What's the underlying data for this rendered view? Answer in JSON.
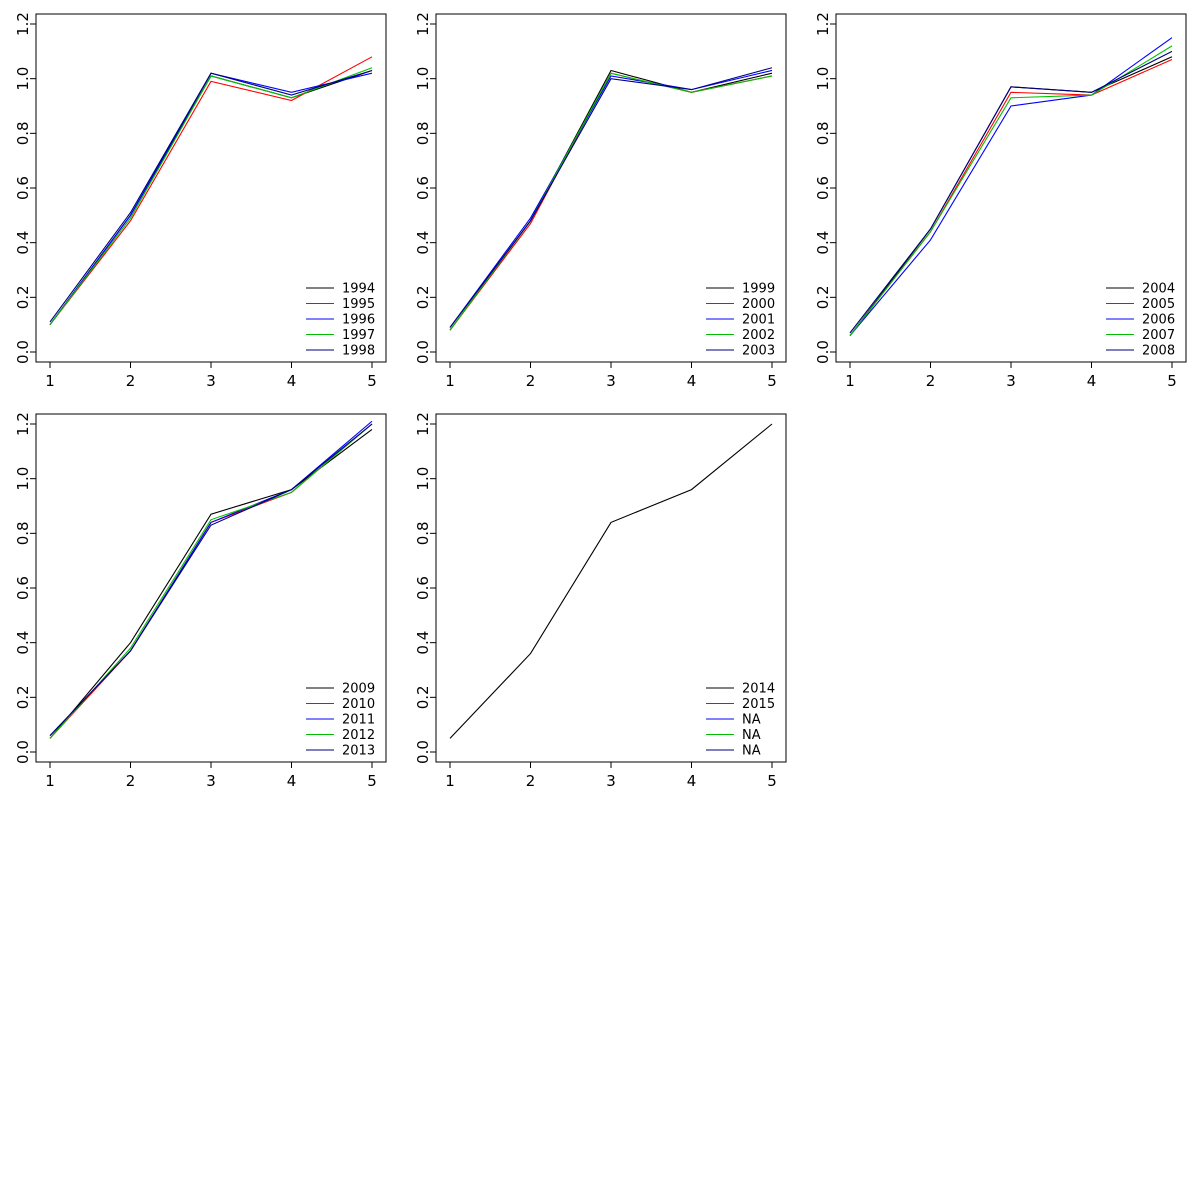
{
  "page": {
    "background": "#ffffff"
  },
  "chart_data": [
    {
      "type": "line",
      "title": "",
      "xlabel": "",
      "ylabel": "",
      "x": [
        1,
        2,
        3,
        4,
        5
      ],
      "xlim": [
        1,
        5
      ],
      "ylim": [
        0,
        1.2
      ],
      "x_ticks": [
        1,
        2,
        3,
        4,
        5
      ],
      "y_ticks": [
        0.0,
        0.2,
        0.4,
        0.6,
        0.8,
        1.0,
        1.2
      ],
      "grid": false,
      "legend_position": "bottomright",
      "series": [
        {
          "name": "1994",
          "color": "#000000",
          "values": [
            0.1,
            0.5,
            1.01,
            0.93,
            1.03
          ]
        },
        {
          "name": "1995",
          "color": "#FF0000",
          "values": [
            0.1,
            0.48,
            0.99,
            0.92,
            1.08
          ]
        },
        {
          "name": "1996",
          "color": "#0000FF",
          "values": [
            0.1,
            0.5,
            1.02,
            0.95,
            1.02
          ]
        },
        {
          "name": "1997",
          "color": "#00C000",
          "values": [
            0.1,
            0.49,
            1.01,
            0.93,
            1.04
          ]
        },
        {
          "name": "1998",
          "color": "#000080",
          "values": [
            0.11,
            0.51,
            1.02,
            0.94,
            1.03
          ]
        }
      ],
      "legend": [
        {
          "label": "1994",
          "color": "#000000"
        },
        {
          "label": "1995",
          "color": "#FF0000"
        },
        {
          "label": "1996",
          "color": "#0000FF"
        },
        {
          "label": "1997",
          "color": "#00C000"
        },
        {
          "label": "1998",
          "color": "#000080"
        }
      ]
    },
    {
      "type": "line",
      "title": "",
      "xlabel": "",
      "ylabel": "",
      "x": [
        1,
        2,
        3,
        4,
        5
      ],
      "xlim": [
        1,
        5
      ],
      "ylim": [
        0,
        1.2
      ],
      "x_ticks": [
        1,
        2,
        3,
        4,
        5
      ],
      "y_ticks": [
        0.0,
        0.2,
        0.4,
        0.6,
        0.8,
        1.0,
        1.2
      ],
      "grid": false,
      "legend_position": "bottomright",
      "series": [
        {
          "name": "1999",
          "color": "#000000",
          "values": [
            0.08,
            0.48,
            1.03,
            0.95,
            1.02
          ]
        },
        {
          "name": "2000",
          "color": "#FF0000",
          "values": [
            0.08,
            0.47,
            1.02,
            0.95,
            1.01
          ]
        },
        {
          "name": "2001",
          "color": "#0000FF",
          "values": [
            0.09,
            0.49,
            1.01,
            0.96,
            1.03
          ]
        },
        {
          "name": "2002",
          "color": "#00C000",
          "values": [
            0.08,
            0.48,
            1.02,
            0.95,
            1.01
          ]
        },
        {
          "name": "2003",
          "color": "#000080",
          "values": [
            0.09,
            0.48,
            1.0,
            0.96,
            1.04
          ]
        }
      ],
      "legend": [
        {
          "label": "1999",
          "color": "#000000"
        },
        {
          "label": "2000",
          "color": "#FF0000"
        },
        {
          "label": "2001",
          "color": "#0000FF"
        },
        {
          "label": "2002",
          "color": "#00C000"
        },
        {
          "label": "2003",
          "color": "#000080"
        }
      ]
    },
    {
      "type": "line",
      "title": "",
      "xlabel": "",
      "ylabel": "",
      "x": [
        1,
        2,
        3,
        4,
        5
      ],
      "xlim": [
        1,
        5
      ],
      "ylim": [
        0,
        1.2
      ],
      "x_ticks": [
        1,
        2,
        3,
        4,
        5
      ],
      "y_ticks": [
        0.0,
        0.2,
        0.4,
        0.6,
        0.8,
        1.0,
        1.2
      ],
      "grid": false,
      "legend_position": "bottomright",
      "series": [
        {
          "name": "2004",
          "color": "#000000",
          "values": [
            0.06,
            0.45,
            0.97,
            0.95,
            1.08
          ]
        },
        {
          "name": "2005",
          "color": "#FF0000",
          "values": [
            0.06,
            0.44,
            0.95,
            0.94,
            1.07
          ]
        },
        {
          "name": "2006",
          "color": "#0000FF",
          "values": [
            0.06,
            0.41,
            0.9,
            0.94,
            1.15
          ]
        },
        {
          "name": "2007",
          "color": "#00C000",
          "values": [
            0.06,
            0.44,
            0.93,
            0.94,
            1.12
          ]
        },
        {
          "name": "2008",
          "color": "#000080",
          "values": [
            0.07,
            0.45,
            0.97,
            0.95,
            1.1
          ]
        }
      ],
      "legend": [
        {
          "label": "2004",
          "color": "#000000"
        },
        {
          "label": "2005",
          "color": "#FF0000"
        },
        {
          "label": "2006",
          "color": "#0000FF"
        },
        {
          "label": "2007",
          "color": "#00C000"
        },
        {
          "label": "2008",
          "color": "#000080"
        }
      ]
    },
    {
      "type": "line",
      "title": "",
      "xlabel": "",
      "ylabel": "",
      "x": [
        1,
        2,
        3,
        4,
        5
      ],
      "xlim": [
        1,
        5
      ],
      "ylim": [
        0,
        1.2
      ],
      "x_ticks": [
        1,
        2,
        3,
        4,
        5
      ],
      "y_ticks": [
        0.0,
        0.2,
        0.4,
        0.6,
        0.8,
        1.0,
        1.2
      ],
      "grid": false,
      "legend_position": "bottomright",
      "series": [
        {
          "name": "2009",
          "color": "#000000",
          "values": [
            0.05,
            0.4,
            0.87,
            0.96,
            1.18
          ]
        },
        {
          "name": "2010",
          "color": "#FF0000",
          "values": [
            0.05,
            0.37,
            0.84,
            0.95,
            1.2
          ]
        },
        {
          "name": "2011",
          "color": "#0000FF",
          "values": [
            0.06,
            0.37,
            0.84,
            0.96,
            1.21
          ]
        },
        {
          "name": "2012",
          "color": "#00C000",
          "values": [
            0.05,
            0.38,
            0.85,
            0.95,
            1.2
          ]
        },
        {
          "name": "2013",
          "color": "#000080",
          "values": [
            0.06,
            0.37,
            0.83,
            0.96,
            1.2
          ]
        }
      ],
      "legend": [
        {
          "label": "2009",
          "color": "#000000"
        },
        {
          "label": "2010",
          "color": "#FF0000"
        },
        {
          "label": "2011",
          "color": "#0000FF"
        },
        {
          "label": "2012",
          "color": "#00C000"
        },
        {
          "label": "2013",
          "color": "#000080"
        }
      ]
    },
    {
      "type": "line",
      "title": "",
      "xlabel": "",
      "ylabel": "",
      "x": [
        1,
        2,
        3,
        4,
        5
      ],
      "xlim": [
        1,
        5
      ],
      "ylim": [
        0,
        1.2
      ],
      "x_ticks": [
        1,
        2,
        3,
        4,
        5
      ],
      "y_ticks": [
        0.0,
        0.2,
        0.4,
        0.6,
        0.8,
        1.0,
        1.2
      ],
      "grid": false,
      "legend_position": "bottomright",
      "series": [
        {
          "name": "2014",
          "color": "#000000",
          "values": [
            0.05,
            0.36,
            0.84,
            0.96,
            1.2
          ]
        },
        {
          "name": "2015",
          "color": "#FF0000",
          "values": null
        },
        {
          "name": "NA",
          "color": "#0000FF",
          "values": null
        },
        {
          "name": "NA",
          "color": "#00C000",
          "values": null
        },
        {
          "name": "NA",
          "color": "#000080",
          "values": null
        }
      ],
      "legend": [
        {
          "label": "2014",
          "color": "#000000"
        },
        {
          "label": "2015",
          "color": "#FF0000"
        },
        {
          "label": "NA",
          "color": "#0000FF"
        },
        {
          "label": "NA",
          "color": "#00C000"
        },
        {
          "label": "NA",
          "color": "#000080"
        }
      ]
    }
  ]
}
